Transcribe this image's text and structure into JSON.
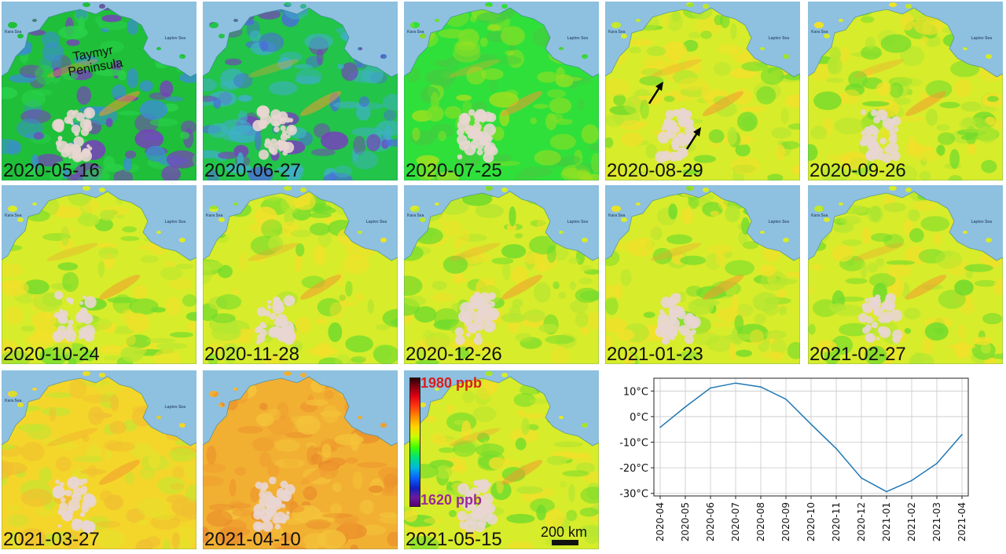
{
  "panels": [
    {
      "date": "2020-05-16",
      "palette": "early"
    },
    {
      "date": "2020-06-27",
      "palette": "blue"
    },
    {
      "date": "2020-07-25",
      "palette": "green"
    },
    {
      "date": "2020-08-29",
      "palette": "yellowgreen"
    },
    {
      "date": "2020-09-26",
      "palette": "yellowgreen"
    },
    {
      "date": "2020-10-24",
      "palette": "yellowgreen"
    },
    {
      "date": "2020-11-28",
      "palette": "yellowgreen"
    },
    {
      "date": "2020-12-26",
      "palette": "yellowgreen"
    },
    {
      "date": "2021-01-23",
      "palette": "yellowgreen"
    },
    {
      "date": "2021-02-27",
      "palette": "yellowgreen"
    },
    {
      "date": "2021-03-27",
      "palette": "yellow"
    },
    {
      "date": "2021-04-10",
      "palette": "orange"
    },
    {
      "date": "2021-05-15",
      "palette": "yellowgreen"
    }
  ],
  "map_labels": {
    "kara_sea": "Kara Sea",
    "laptev_sea": "Laptev Sea",
    "peninsula": "Taymyr Peninsula"
  },
  "colorbar": {
    "max_label": "1980 ppb",
    "min_label": "1620 ppb"
  },
  "scale_bar": {
    "label": "200 km"
  },
  "chart_data": {
    "type": "line",
    "title": "",
    "xlabel": "",
    "ylabel": "",
    "x": [
      "2020-04",
      "2020-05",
      "2020-06",
      "2020-07",
      "2020-08",
      "2020-09",
      "2020-10",
      "2020-11",
      "2020-12",
      "2021-01",
      "2021-02",
      "2021-03",
      "2021-04"
    ],
    "series": [
      {
        "values": [
          -4.2,
          3.8,
          11.2,
          13.1,
          11.6,
          6.8,
          -3.0,
          -12.5,
          -24.0,
          -29.3,
          -25.0,
          -18.3,
          -7.0
        ]
      }
    ],
    "yticks": [
      "10°C",
      "0°C",
      "-10°C",
      "-20°C",
      "-30°C"
    ],
    "ytick_values": [
      10,
      0,
      -10,
      -20,
      -30
    ],
    "ylim": [
      -31,
      15
    ],
    "grid": true,
    "line_color": "#1f77b4"
  },
  "colors": {
    "sea": "#8ec0df",
    "snow": "#e9d6d2",
    "early": [
      "#1fbf3a",
      "#2ad14a",
      "#3a8fd0",
      "#7a3cc0"
    ],
    "blue": [
      "#22c44a",
      "#3fb0c8",
      "#4a6fd8",
      "#7a3cc0"
    ],
    "green": [
      "#2fe03a",
      "#7ee028",
      "#44cc40",
      "#9fe020"
    ],
    "yellowgreen": [
      "#d7ec2a",
      "#b6e630",
      "#f2e02a",
      "#6fdb2c"
    ],
    "yellow": [
      "#f4d62a",
      "#f0c030",
      "#e6e02c",
      "#c6e430"
    ],
    "orange": [
      "#f2b033",
      "#ee9a2e",
      "#f4c43a",
      "#e88a2a"
    ]
  }
}
